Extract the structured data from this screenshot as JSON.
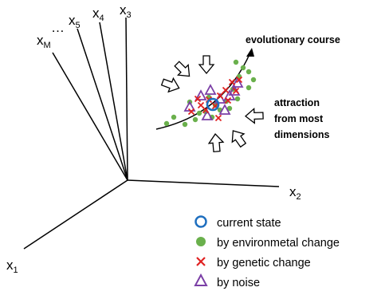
{
  "axes": {
    "x1": {
      "main": "x",
      "sub": "1"
    },
    "x2": {
      "main": "x",
      "sub": "2"
    },
    "x3": {
      "main": "x",
      "sub": "3"
    },
    "x4": {
      "main": "x",
      "sub": "4"
    },
    "x5": {
      "main": "x",
      "sub": "5"
    },
    "xM": {
      "main": "x",
      "sub": "M"
    },
    "ellipsis": "…"
  },
  "annotations": {
    "evolutionary_course": "evolutionary course",
    "attraction": [
      "attraction",
      "from most",
      "dimensions"
    ]
  },
  "legend": [
    {
      "label": "current state"
    },
    {
      "label": "by environmetal change"
    },
    {
      "label": "by genetic change"
    },
    {
      "label": "by noise"
    }
  ],
  "colors": {
    "current_state": "#1f6fbf",
    "environmental": "#6ab04c",
    "genetic": "#e02020",
    "noise": "#7b3fa6",
    "line": "#000000"
  }
}
